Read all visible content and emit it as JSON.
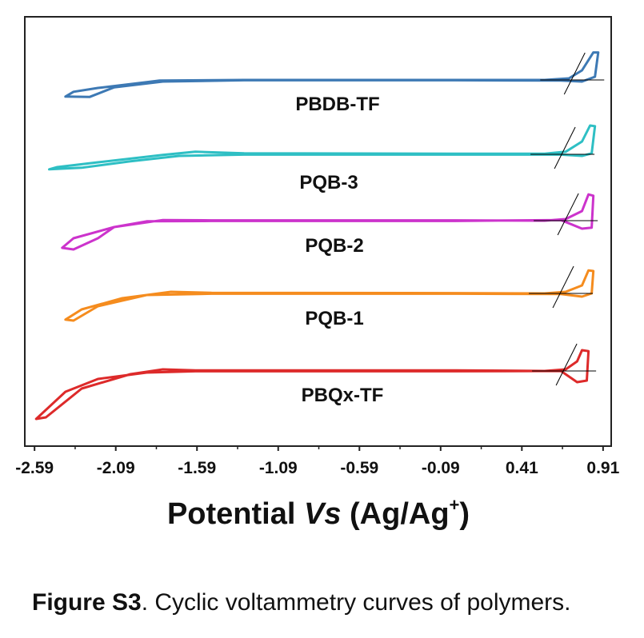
{
  "caption": {
    "label": "Figure S3",
    "text": ". Cyclic voltammetry curves of polymers."
  },
  "chart_data": {
    "type": "line",
    "title": "",
    "xlabel": {
      "main": "Potential ",
      "italic": "Vs",
      "rest": " (Ag/Ag",
      "sup": "+",
      "end": ")"
    },
    "ylabel": "",
    "xlim": [
      -2.65,
      0.96
    ],
    "x_ticks": [
      -2.59,
      -2.09,
      -1.59,
      -1.09,
      -0.59,
      -0.09,
      0.41,
      0.91
    ],
    "x_tick_labels": [
      "-2.59",
      "-2.09",
      "-1.59",
      "-1.09",
      "-0.59",
      "-0.09",
      "0.41",
      "0.91"
    ],
    "grid": false,
    "series": [
      {
        "name": "PBDB-TF",
        "color": "#3d79b4",
        "onset_potential": 0.72,
        "points": [
          [
            -1.82,
            -0.02
          ],
          [
            -1.3,
            0.0
          ],
          [
            0.0,
            0.0
          ],
          [
            0.55,
            0.0
          ],
          [
            0.7,
            0.05
          ],
          [
            0.78,
            0.3
          ],
          [
            0.85,
            0.86
          ],
          [
            0.88,
            0.86
          ],
          [
            0.86,
            0.1
          ],
          [
            0.78,
            -0.05
          ],
          [
            0.65,
            -0.02
          ],
          [
            0.0,
            -0.01
          ],
          [
            -1.3,
            -0.01
          ],
          [
            -1.8,
            -0.05
          ],
          [
            -2.1,
            -0.23
          ],
          [
            -2.25,
            -0.53
          ],
          [
            -2.4,
            -0.52
          ],
          [
            -2.35,
            -0.37
          ],
          [
            -2.2,
            -0.25
          ],
          [
            -1.9,
            -0.07
          ],
          [
            -1.82,
            -0.02
          ]
        ]
      },
      {
        "name": "PQB-3",
        "color": "#2ebfc4",
        "onset_potential": 0.66,
        "points": [
          [
            -1.6,
            0.08
          ],
          [
            -1.3,
            0.03
          ],
          [
            0.0,
            0.02
          ],
          [
            0.55,
            0.02
          ],
          [
            0.68,
            0.08
          ],
          [
            0.78,
            0.4
          ],
          [
            0.83,
            0.9
          ],
          [
            0.86,
            0.88
          ],
          [
            0.84,
            0.03
          ],
          [
            0.78,
            -0.05
          ],
          [
            0.65,
            -0.01
          ],
          [
            0.0,
            -0.01
          ],
          [
            -1.3,
            -0.01
          ],
          [
            -1.7,
            -0.05
          ],
          [
            -2.0,
            -0.22
          ],
          [
            -2.3,
            -0.42
          ],
          [
            -2.5,
            -0.47
          ],
          [
            -2.45,
            -0.4
          ],
          [
            -2.2,
            -0.25
          ],
          [
            -1.8,
            -0.02
          ],
          [
            -1.6,
            0.08
          ]
        ]
      },
      {
        "name": "PQB-2",
        "color": "#cc33cc",
        "onset_potential": 0.68,
        "points": [
          [
            -1.8,
            0.02
          ],
          [
            -1.5,
            0.01
          ],
          [
            0.0,
            0.01
          ],
          [
            0.55,
            0.0
          ],
          [
            0.68,
            0.05
          ],
          [
            0.78,
            0.3
          ],
          [
            0.82,
            0.82
          ],
          [
            0.85,
            0.78
          ],
          [
            0.84,
            -0.22
          ],
          [
            0.78,
            -0.25
          ],
          [
            0.65,
            0.02
          ],
          [
            0.0,
            -0.01
          ],
          [
            -1.5,
            -0.01
          ],
          [
            -1.9,
            -0.02
          ],
          [
            -2.1,
            -0.2
          ],
          [
            -2.2,
            -0.55
          ],
          [
            -2.35,
            -0.9
          ],
          [
            -2.42,
            -0.85
          ],
          [
            -2.35,
            -0.55
          ],
          [
            -2.1,
            -0.2
          ],
          [
            -1.8,
            0.02
          ]
        ]
      },
      {
        "name": "PQB-1",
        "color": "#f58c1e",
        "onset_potential": 0.65,
        "points": [
          [
            -1.75,
            0.05
          ],
          [
            -1.5,
            0.02
          ],
          [
            0.0,
            0.01
          ],
          [
            0.55,
            0.0
          ],
          [
            0.68,
            0.05
          ],
          [
            0.78,
            0.25
          ],
          [
            0.82,
            0.72
          ],
          [
            0.85,
            0.7
          ],
          [
            0.84,
            0.0
          ],
          [
            0.78,
            -0.1
          ],
          [
            0.65,
            -0.02
          ],
          [
            0.0,
            -0.01
          ],
          [
            -1.5,
            -0.01
          ],
          [
            -1.9,
            -0.05
          ],
          [
            -2.2,
            -0.4
          ],
          [
            -2.35,
            -0.85
          ],
          [
            -2.4,
            -0.82
          ],
          [
            -2.3,
            -0.5
          ],
          [
            -2.05,
            -0.15
          ],
          [
            -1.75,
            0.05
          ]
        ]
      },
      {
        "name": "PBQx-TF",
        "color": "#dd2a2a",
        "onset_potential": 0.67,
        "points": [
          [
            -1.8,
            0.05
          ],
          [
            -1.6,
            0.02
          ],
          [
            0.0,
            0.02
          ],
          [
            0.55,
            0.0
          ],
          [
            0.68,
            0.05
          ],
          [
            0.75,
            0.3
          ],
          [
            0.78,
            0.65
          ],
          [
            0.82,
            0.62
          ],
          [
            0.81,
            -0.3
          ],
          [
            0.75,
            -0.35
          ],
          [
            0.65,
            0.0
          ],
          [
            0.0,
            -0.01
          ],
          [
            -1.6,
            -0.01
          ],
          [
            -1.9,
            -0.05
          ],
          [
            -2.2,
            -0.25
          ],
          [
            -2.4,
            -0.65
          ],
          [
            -2.58,
            -1.5
          ],
          [
            -2.52,
            -1.45
          ],
          [
            -2.3,
            -0.55
          ],
          [
            -2.0,
            -0.1
          ],
          [
            -1.8,
            0.05
          ]
        ]
      }
    ]
  }
}
